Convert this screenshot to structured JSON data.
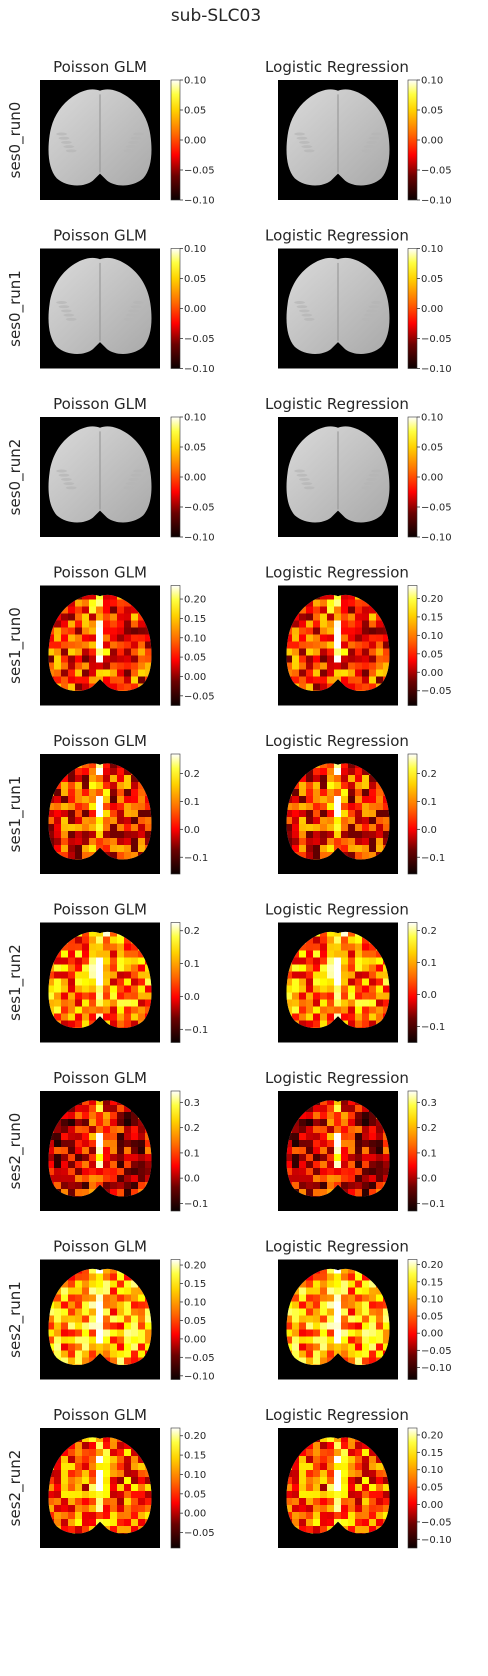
{
  "chart_data": {
    "type": "heatmap",
    "title": "sub-SLC03",
    "colormap": "hot",
    "background": "#000000",
    "columns": [
      "Poisson GLM",
      "Logistic Regression"
    ],
    "rows": [
      {
        "label": "ses0_run0",
        "panels": [
          {
            "title": "Poisson GLM",
            "mode": "atlas",
            "vmin": -0.1,
            "vmax": 0.1,
            "ticks": [
              "0.10",
              "0.05",
              "0.00",
              "−0.05",
              "−0.10"
            ]
          },
          {
            "title": "Logistic Regression",
            "mode": "atlas",
            "vmin": -0.1,
            "vmax": 0.1,
            "ticks": [
              "0.10",
              "0.05",
              "0.00",
              "−0.05",
              "−0.10"
            ]
          }
        ]
      },
      {
        "label": "ses0_run1",
        "panels": [
          {
            "title": "Poisson GLM",
            "mode": "atlas",
            "vmin": -0.1,
            "vmax": 0.1,
            "ticks": [
              "0.10",
              "0.05",
              "0.00",
              "−0.05",
              "−0.10"
            ]
          },
          {
            "title": "Logistic Regression",
            "mode": "atlas",
            "vmin": -0.1,
            "vmax": 0.1,
            "ticks": [
              "0.10",
              "0.05",
              "0.00",
              "−0.05",
              "−0.10"
            ]
          }
        ]
      },
      {
        "label": "ses0_run2",
        "panels": [
          {
            "title": "Poisson GLM",
            "mode": "atlas",
            "vmin": -0.1,
            "vmax": 0.1,
            "ticks": [
              "0.10",
              "0.05",
              "0.00",
              "−0.05",
              "−0.10"
            ]
          },
          {
            "title": "Logistic Regression",
            "mode": "atlas",
            "vmin": -0.1,
            "vmax": 0.1,
            "ticks": [
              "0.10",
              "0.05",
              "0.00",
              "−0.05",
              "−0.10"
            ]
          }
        ]
      },
      {
        "label": "ses1_run0",
        "panels": [
          {
            "title": "Poisson GLM",
            "mode": "heat",
            "seed": 11,
            "mean": 0.42,
            "vmin": -0.075,
            "vmax": 0.235,
            "ticks": [
              "0.20",
              "0.15",
              "0.10",
              "0.05",
              "0.00",
              "−0.05"
            ]
          },
          {
            "title": "Logistic Regression",
            "mode": "heat",
            "seed": 11,
            "mean": 0.42,
            "vmin": -0.09,
            "vmax": 0.235,
            "ticks": [
              "0.20",
              "0.15",
              "0.10",
              "0.05",
              "0.00",
              "−0.05"
            ]
          }
        ]
      },
      {
        "label": "ses1_run1",
        "panels": [
          {
            "title": "Poisson GLM",
            "mode": "heat",
            "seed": 23,
            "mean": 0.4,
            "vmin": -0.16,
            "vmax": 0.27,
            "ticks": [
              "0.2",
              "0.1",
              "0.0",
              "−0.1"
            ]
          },
          {
            "title": "Logistic Regression",
            "mode": "heat",
            "seed": 23,
            "mean": 0.4,
            "vmin": -0.16,
            "vmax": 0.27,
            "ticks": [
              "0.2",
              "0.1",
              "0.0",
              "−0.1"
            ]
          }
        ]
      },
      {
        "label": "ses1_run2",
        "panels": [
          {
            "title": "Poisson GLM",
            "mode": "heat",
            "seed": 37,
            "mean": 0.55,
            "vmin": -0.14,
            "vmax": 0.225,
            "ticks": [
              "0.2",
              "0.1",
              "0.0",
              "−0.1"
            ]
          },
          {
            "title": "Logistic Regression",
            "mode": "heat",
            "seed": 37,
            "mean": 0.55,
            "vmin": -0.15,
            "vmax": 0.225,
            "ticks": [
              "0.2",
              "0.1",
              "0.0",
              "−0.1"
            ]
          }
        ]
      },
      {
        "label": "ses2_run0",
        "panels": [
          {
            "title": "Poisson GLM",
            "mode": "heat",
            "seed": 41,
            "mean": 0.3,
            "vmin": -0.13,
            "vmax": 0.345,
            "ticks": [
              "0.3",
              "0.2",
              "0.1",
              "0.0",
              "−0.1"
            ]
          },
          {
            "title": "Logistic Regression",
            "mode": "heat",
            "seed": 41,
            "mean": 0.3,
            "vmin": -0.13,
            "vmax": 0.345,
            "ticks": [
              "0.3",
              "0.2",
              "0.1",
              "0.0",
              "−0.1"
            ]
          }
        ]
      },
      {
        "label": "ses2_run1",
        "panels": [
          {
            "title": "Poisson GLM",
            "mode": "heat",
            "seed": 53,
            "mean": 0.62,
            "vmin": -0.11,
            "vmax": 0.215,
            "ticks": [
              "0.20",
              "0.15",
              "0.10",
              "0.05",
              "0.00",
              "−0.05",
              "−0.10"
            ]
          },
          {
            "title": "Logistic Regression",
            "mode": "heat",
            "seed": 53,
            "mean": 0.62,
            "vmin": -0.135,
            "vmax": 0.215,
            "ticks": [
              "0.20",
              "0.15",
              "0.10",
              "0.05",
              "0.00",
              "−0.05",
              "−0.10"
            ]
          }
        ]
      },
      {
        "label": "ses2_run2",
        "panels": [
          {
            "title": "Poisson GLM",
            "mode": "heat",
            "seed": 67,
            "mean": 0.48,
            "vmin": -0.09,
            "vmax": 0.22,
            "ticks": [
              "0.20",
              "0.15",
              "0.10",
              "0.05",
              "0.00",
              "−0.05"
            ]
          },
          {
            "title": "Logistic Regression",
            "mode": "heat",
            "seed": 67,
            "mean": 0.48,
            "vmin": -0.125,
            "vmax": 0.22,
            "ticks": [
              "0.20",
              "0.15",
              "0.10",
              "0.05",
              "0.00",
              "−0.05",
              "−0.10"
            ]
          }
        ]
      }
    ]
  }
}
